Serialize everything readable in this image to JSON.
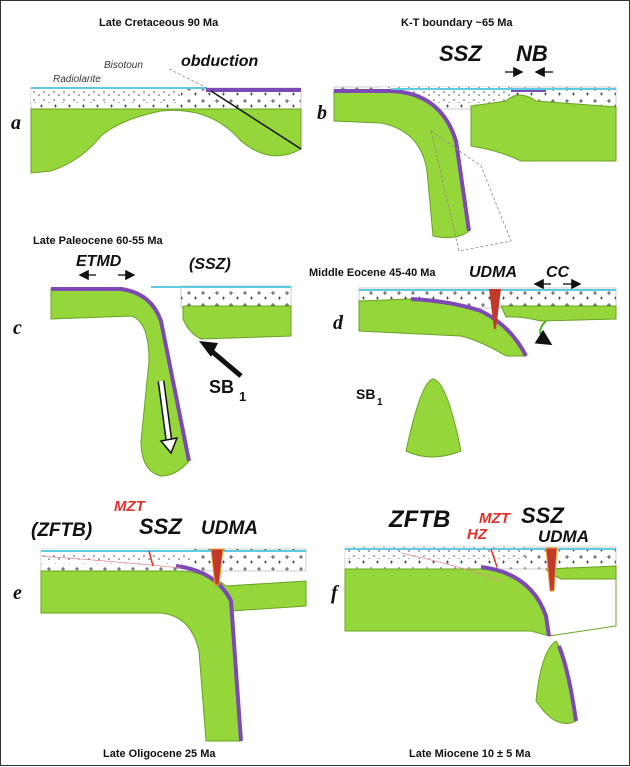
{
  "panels": {
    "a": {
      "letter": "a",
      "age": "Late Cretaceous  90 Ma",
      "labels": {
        "obduction": "obduction",
        "bisotoun": "Bisotoun",
        "radiolarite": "Radiolarite"
      }
    },
    "b": {
      "letter": "b",
      "age": "K-T boundary  ~65 Ma",
      "labels": {
        "ssz": "SSZ",
        "nb": "NB"
      }
    },
    "c": {
      "letter": "c",
      "age": "Late Paleocene  60-55 Ma",
      "labels": {
        "etmd": "ETMD",
        "ssz": "(SSZ)",
        "sb": "SB",
        "sb_sub": "1"
      }
    },
    "d": {
      "letter": "d",
      "age": "Middle Eocene  45-40 Ma",
      "labels": {
        "udma": "UDMA",
        "cc": "CC",
        "sb": "SB",
        "sb_sub": "1"
      }
    },
    "e": {
      "letter": "e",
      "age": "Late Oligocene  25 Ma",
      "labels": {
        "mzt": "MZT",
        "zftb": "(ZFTB)",
        "ssz": "SSZ",
        "udma": "UDMA"
      }
    },
    "f": {
      "letter": "f",
      "age": "Late Miocene  10 ± 5 Ma",
      "labels": {
        "zftb": "ZFTB",
        "mzt": "MZT",
        "hz": "HZ",
        "ssz": "SSZ",
        "udma": "UDMA"
      }
    }
  },
  "colors": {
    "mantle": "#95d63b",
    "slab_edge": "#7d49b5",
    "sediment": "#5fcbe0",
    "suture": "#e0312b"
  }
}
